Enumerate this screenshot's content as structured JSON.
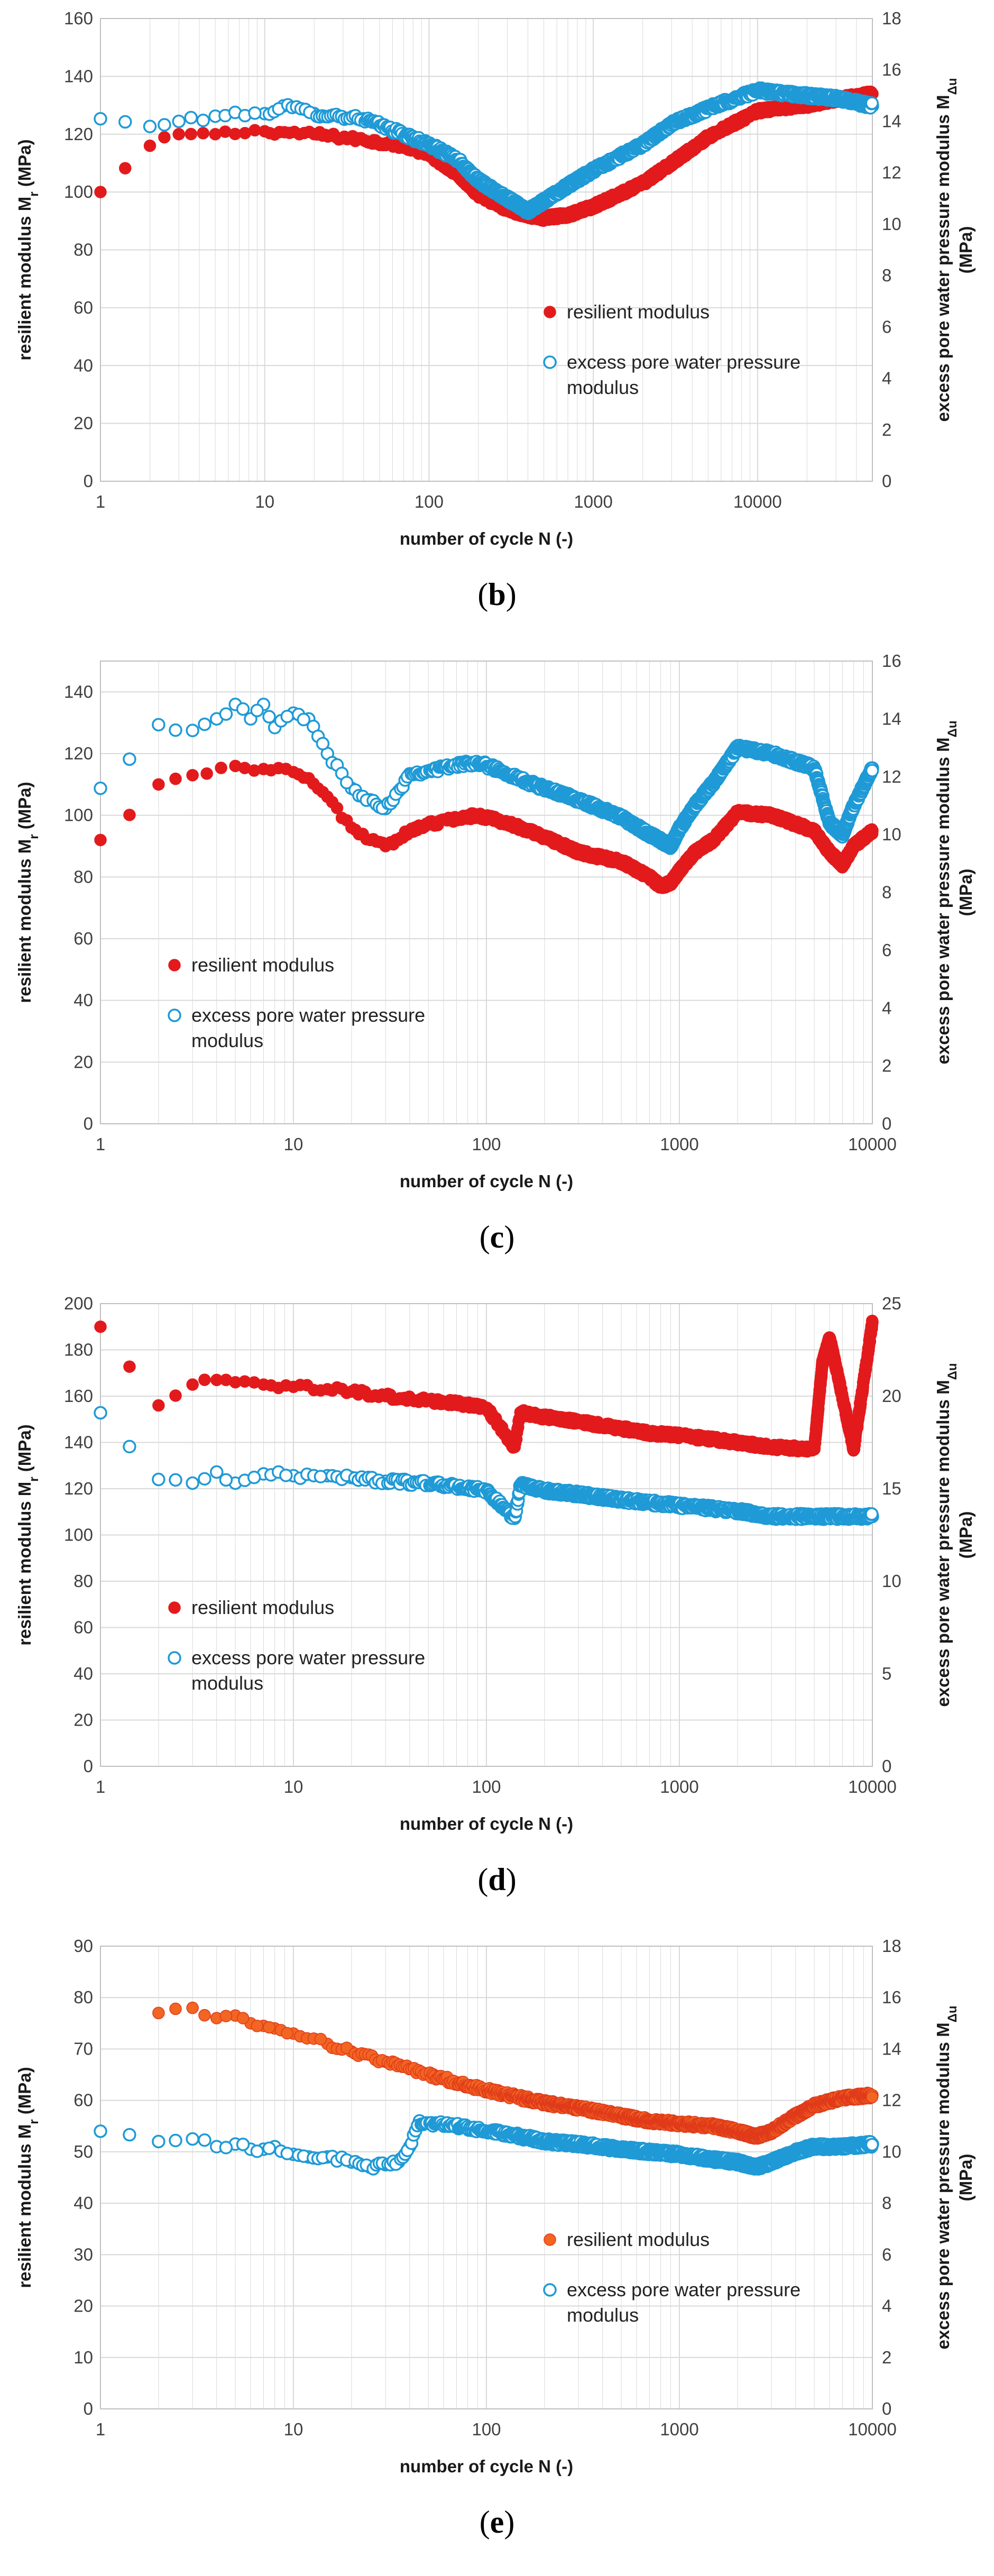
{
  "colors": {
    "resilient": "#e31a1c",
    "resilient_e": "#f26522",
    "resilient_e_edge": "#e03a1a",
    "excess": "#1f9ad6",
    "grid": "#d9d9d9",
    "axis": "#bfbfbf"
  },
  "chart_data": [
    {
      "type": "scatter",
      "panel_caption": "b",
      "xlabel": "number of cycle N (-)",
      "ylabel_left": "resilient modulus M",
      "ylabel_left_sub": "r",
      "ylabel_left_unit": " (MPa)",
      "ylabel_right_line1": "excess pore water pressure modulus M",
      "ylabel_right_sub": "Δu",
      "ylabel_right_line2": "(MPa)",
      "xscale": "log",
      "xlim": [
        1,
        50000
      ],
      "ylim_left": [
        0,
        160
      ],
      "ylim_right": [
        0,
        18
      ],
      "yticks_left": [
        "0",
        "20",
        "40",
        "60",
        "80",
        "100",
        "120",
        "140",
        "160"
      ],
      "yticks_right": [
        "0",
        "2",
        "4",
        "6",
        "8",
        "10",
        "12",
        "14",
        "16",
        "18"
      ],
      "xticks": [
        "1",
        "10",
        "100",
        "1000",
        "10000"
      ],
      "legend": [
        "resilient modulus",
        "excess pore water pressure modulus"
      ],
      "legend_position": "center-right",
      "series": [
        {
          "name": "resilient modulus",
          "axis": "left",
          "style": "filled",
          "x": [
            1,
            2,
            3,
            5,
            10,
            20,
            40,
            70,
            100,
            150,
            200,
            300,
            400,
            500,
            700,
            1000,
            2000,
            3000,
            5000,
            10000,
            20000,
            30000,
            50000
          ],
          "y": [
            100,
            116,
            120,
            120,
            121,
            120,
            118,
            116,
            113,
            106,
            99,
            94,
            92,
            91,
            92,
            95,
            103,
            110,
            119,
            128,
            130,
            132,
            134
          ]
        },
        {
          "name": "excess pore water pressure modulus",
          "axis": "right",
          "style": "open",
          "x": [
            1,
            2,
            3,
            5,
            10,
            13,
            20,
            40,
            70,
            100,
            150,
            200,
            300,
            400,
            500,
            700,
            1000,
            2000,
            3000,
            5000,
            10000,
            20000,
            30000,
            50000
          ],
          "y": [
            14.1,
            13.8,
            14.0,
            14.2,
            14.3,
            14.6,
            14.3,
            14.1,
            13.5,
            13.1,
            12.5,
            11.7,
            11.0,
            10.5,
            10.9,
            11.5,
            12.1,
            13.1,
            13.9,
            14.5,
            15.2,
            15.0,
            14.9,
            14.6
          ]
        }
      ]
    },
    {
      "type": "scatter",
      "panel_caption": "c",
      "xlabel": "number of cycle N (-)",
      "ylabel_left": "resilient modulus M",
      "ylabel_left_sub": "r",
      "ylabel_left_unit": " (MPa)",
      "ylabel_right_line1": "excess pore water pressure modulus M",
      "ylabel_right_sub": "Δu",
      "ylabel_right_line2": "(MPa)",
      "xscale": "log",
      "xlim": [
        1,
        10000
      ],
      "ylim_left": [
        0,
        150
      ],
      "ylim_right": [
        0,
        16
      ],
      "yticks_left": [
        "0",
        "20",
        "40",
        "60",
        "80",
        "100",
        "120",
        "140"
      ],
      "yticks_right": [
        "0",
        "2",
        "4",
        "6",
        "8",
        "10",
        "12",
        "14",
        "16"
      ],
      "xticks": [
        "1",
        "10",
        "100",
        "1000",
        "10000"
      ],
      "legend": [
        "resilient modulus",
        "excess pore water pressure modulus"
      ],
      "legend_position": "bottom-left",
      "series": [
        {
          "name": "resilient modulus",
          "axis": "left",
          "style": "filled",
          "x": [
            1,
            2,
            3,
            5,
            7,
            10,
            12,
            15,
            20,
            25,
            30,
            35,
            40,
            50,
            70,
            90,
            120,
            150,
            200,
            300,
            500,
            700,
            800,
            900,
            1000,
            1200,
            1500,
            2000,
            3000,
            5000,
            6000,
            7000,
            8000,
            10000
          ],
          "y": [
            92,
            110,
            113,
            116,
            115,
            114,
            112,
            106,
            96,
            92,
            90,
            92,
            95,
            97,
            99,
            100,
            98,
            96,
            93,
            88,
            85,
            80,
            77,
            78,
            82,
            88,
            92,
            101,
            100,
            95,
            88,
            84,
            90,
            95
          ]
        },
        {
          "name": "excess pore water pressure modulus",
          "axis": "right",
          "style": "open",
          "x": [
            1,
            2,
            3,
            4,
            5,
            6,
            7,
            8,
            10,
            12,
            15,
            20,
            25,
            30,
            35,
            40,
            50,
            70,
            90,
            120,
            150,
            200,
            300,
            500,
            700,
            800,
            900,
            1000,
            1200,
            1500,
            2000,
            3000,
            5000,
            6000,
            7000,
            8000,
            10000
          ],
          "y": [
            11.6,
            13.8,
            13.6,
            14.0,
            14.5,
            14.0,
            14.5,
            13.7,
            14.2,
            14.0,
            12.8,
            11.6,
            11.2,
            10.9,
            11.5,
            12.1,
            12.2,
            12.4,
            12.5,
            12.2,
            11.9,
            11.6,
            11.2,
            10.6,
            10.0,
            9.8,
            9.6,
            10.2,
            11.0,
            11.8,
            13.0,
            12.8,
            12.3,
            10.4,
            10.0,
            11.0,
            12.3
          ]
        }
      ]
    },
    {
      "type": "scatter",
      "panel_caption": "d",
      "xlabel": "number of cycle N (-)",
      "ylabel_left": "resilient modulus M",
      "ylabel_left_sub": "r",
      "ylabel_left_unit": " (MPa)",
      "ylabel_right_line1": "excess pore water pressure modulus M",
      "ylabel_right_sub": "Δu",
      "ylabel_right_line2": "(MPa)",
      "xscale": "log",
      "xlim": [
        1,
        10000
      ],
      "ylim_left": [
        0,
        200
      ],
      "ylim_right": [
        0,
        25
      ],
      "yticks_left": [
        "0",
        "20",
        "40",
        "60",
        "80",
        "100",
        "120",
        "140",
        "160",
        "180",
        "200"
      ],
      "yticks_right": [
        "0",
        "5",
        "10",
        "15",
        "20",
        "25"
      ],
      "xticks": [
        "1",
        "10",
        "100",
        "1000",
        "10000"
      ],
      "legend": [
        "resilient modulus",
        "excess pore water pressure modulus"
      ],
      "legend_position": "bottom-left",
      "series": [
        {
          "name": "resilient modulus",
          "axis": "left",
          "style": "filled",
          "x": [
            1,
            2,
            3,
            4,
            5,
            7,
            10,
            15,
            20,
            30,
            50,
            70,
            100,
            140,
            150,
            200,
            300,
            500,
            700,
            1000,
            2000,
            3000,
            5000,
            5500,
            6000,
            6500,
            8000,
            10000
          ],
          "y": [
            190,
            156,
            165,
            167,
            166,
            165,
            164,
            163,
            162,
            160,
            158,
            157,
            155,
            138,
            153,
            151,
            149,
            146,
            144,
            143,
            140,
            138,
            137,
            174,
            185,
            172,
            137,
            192
          ]
        },
        {
          "name": "excess pore water pressure modulus",
          "axis": "right",
          "style": "open",
          "x": [
            1,
            2,
            3,
            4,
            5,
            7,
            10,
            15,
            20,
            30,
            50,
            70,
            100,
            140,
            150,
            200,
            300,
            500,
            1000,
            2000,
            3000,
            5000,
            10000
          ],
          "y": [
            19.1,
            15.5,
            15.3,
            15.9,
            15.3,
            15.8,
            15.7,
            15.7,
            15.6,
            15.4,
            15.3,
            15.1,
            14.9,
            13.4,
            15.2,
            14.9,
            14.7,
            14.4,
            14.1,
            13.8,
            13.5,
            13.5,
            13.5
          ]
        }
      ]
    },
    {
      "type": "scatter",
      "panel_caption": "e",
      "xlabel": "number of cycle N (-)",
      "ylabel_left": "resilient modulus M",
      "ylabel_left_sub": "r",
      "ylabel_left_unit": " (MPa)",
      "ylabel_right_line1": "excess pore water pressure modulus M",
      "ylabel_right_sub": "Δu",
      "ylabel_right_line2": "(MPa)",
      "xscale": "log",
      "xlim": [
        1,
        10000
      ],
      "ylim_left": [
        0,
        90
      ],
      "ylim_right": [
        0,
        18
      ],
      "yticks_left": [
        "0",
        "10",
        "20",
        "30",
        "40",
        "50",
        "60",
        "70",
        "80",
        "90"
      ],
      "yticks_right": [
        "0",
        "2",
        "4",
        "6",
        "8",
        "10",
        "12",
        "14",
        "16",
        "18"
      ],
      "xticks": [
        "1",
        "10",
        "100",
        "1000",
        "10000"
      ],
      "legend": [
        "resilient modulus",
        "excess pore water pressure modulus"
      ],
      "legend_position": "center-right",
      "series": [
        {
          "name": "resilient modulus",
          "axis": "left",
          "style": "filled",
          "x": [
            2,
            3,
            4,
            5,
            6,
            7,
            8,
            10,
            15,
            20,
            30,
            50,
            70,
            100,
            150,
            200,
            300,
            500,
            700,
            1000,
            1500,
            2000,
            2500,
            3000,
            4000,
            5000,
            7000,
            10000
          ],
          "y": [
            77,
            78,
            76,
            76.5,
            75,
            74.5,
            74,
            73,
            71,
            69.5,
            67.5,
            65,
            63.5,
            62,
            60.5,
            59.5,
            58.5,
            57,
            56,
            55.5,
            55,
            54,
            53,
            54,
            57,
            59,
            60.5,
            61
          ]
        },
        {
          "name": "excess pore water pressure modulus",
          "axis": "right",
          "style": "open",
          "x": [
            1,
            2,
            3,
            4,
            5,
            6,
            7,
            8,
            10,
            12,
            15,
            20,
            25,
            30,
            35,
            40,
            45,
            50,
            70,
            100,
            150,
            200,
            300,
            500,
            700,
            1000,
            1500,
            2000,
            2500,
            3000,
            4000,
            5000,
            7000,
            10000
          ],
          "y": [
            10.8,
            10.4,
            10.5,
            10.2,
            10.3,
            10.1,
            10.1,
            10.2,
            9.9,
            9.8,
            9.8,
            9.6,
            9.4,
            9.5,
            9.6,
            10.2,
            11.2,
            11.1,
            11.0,
            10.8,
            10.6,
            10.4,
            10.3,
            10.1,
            10.0,
            9.9,
            9.7,
            9.6,
            9.4,
            9.6,
            10.0,
            10.2,
            10.2,
            10.3
          ]
        }
      ]
    }
  ]
}
